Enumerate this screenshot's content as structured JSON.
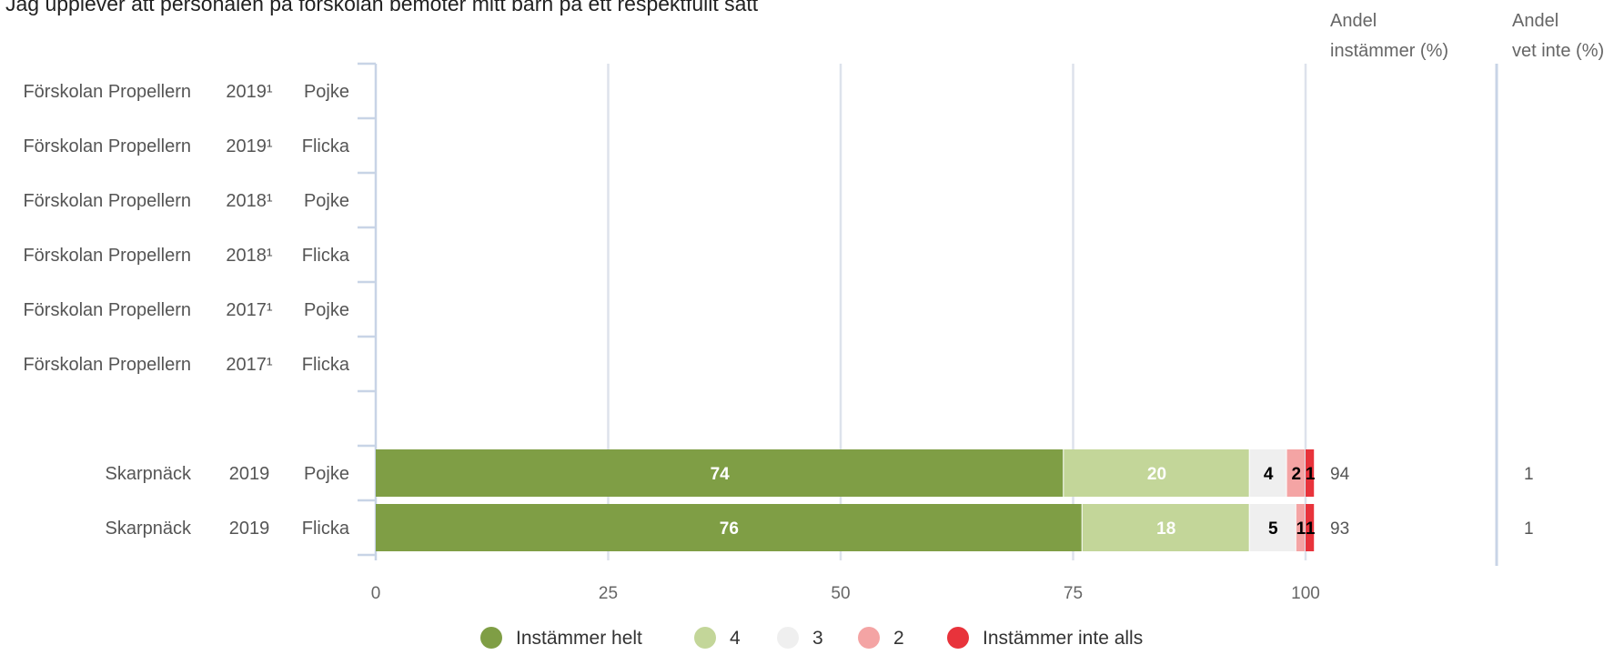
{
  "chart_data": {
    "type": "bar",
    "orientation": "horizontal",
    "stacked": true,
    "title": "Jag upplever att personalen på förskolan bemöter mitt barn på ett respektfullt sätt",
    "xlim": [
      0,
      100
    ],
    "x_ticks": [
      "0",
      "25",
      "50",
      "75",
      "100"
    ],
    "grid": true,
    "legend_position": "bottom",
    "column_headers": {
      "share_agree": [
        "Andel",
        "instämmer (%)"
      ],
      "share_dont_know": [
        "Andel",
        "vet inte (%)"
      ]
    },
    "rows": [
      {
        "unit": "Förskolan Propellern",
        "year": "2019¹",
        "gender": "Pojke",
        "share_agree": "",
        "share_dont_know": ""
      },
      {
        "unit": "Förskolan Propellern",
        "year": "2019¹",
        "gender": "Flicka",
        "share_agree": "",
        "share_dont_know": ""
      },
      {
        "unit": "Förskolan Propellern",
        "year": "2018¹",
        "gender": "Pojke",
        "share_agree": "",
        "share_dont_know": ""
      },
      {
        "unit": "Förskolan Propellern",
        "year": "2018¹",
        "gender": "Flicka",
        "share_agree": "",
        "share_dont_know": ""
      },
      {
        "unit": "Förskolan Propellern",
        "year": "2017¹",
        "gender": "Pojke",
        "share_agree": "",
        "share_dont_know": ""
      },
      {
        "unit": "Förskolan Propellern",
        "year": "2017¹",
        "gender": "Flicka",
        "share_agree": "",
        "share_dont_know": ""
      },
      {
        "unit": "",
        "year": "",
        "gender": "",
        "share_agree": "",
        "share_dont_know": ""
      },
      {
        "unit": "Skarpnäck",
        "year": "2019",
        "gender": "Pojke",
        "share_agree": "94",
        "share_dont_know": "1"
      },
      {
        "unit": "Skarpnäck",
        "year": "2019",
        "gender": "Flicka",
        "share_agree": "93",
        "share_dont_know": "1"
      }
    ],
    "series": [
      {
        "name": "Instämmer helt",
        "color": "#7f9e45",
        "label_color": "#ffffff",
        "values": [
          null,
          null,
          null,
          null,
          null,
          null,
          null,
          74,
          76
        ]
      },
      {
        "name": "4",
        "color": "#c3d699",
        "label_color": "#ffffff",
        "values": [
          null,
          null,
          null,
          null,
          null,
          null,
          null,
          20,
          18
        ]
      },
      {
        "name": "3",
        "color": "#efefef",
        "label_color": "#000000",
        "values": [
          null,
          null,
          null,
          null,
          null,
          null,
          null,
          4,
          5
        ]
      },
      {
        "name": "2",
        "color": "#f4a4a4",
        "label_color": "#000000",
        "values": [
          null,
          null,
          null,
          null,
          null,
          null,
          null,
          2,
          1
        ]
      },
      {
        "name": "Instämmer inte alls",
        "color": "#e8333b",
        "label_color": "#000000",
        "values": [
          null,
          null,
          null,
          null,
          null,
          null,
          null,
          1,
          1
        ]
      }
    ]
  }
}
